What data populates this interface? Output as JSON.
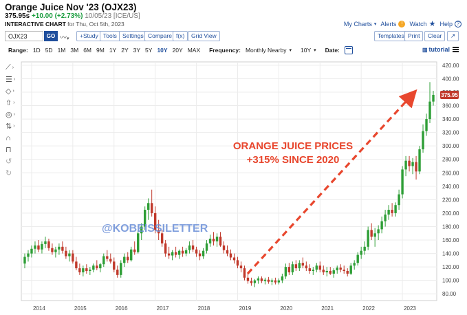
{
  "header": {
    "title": "Orange Juice Nov '23 (OJX23)",
    "last": "375.95s",
    "change": "+10.00 (+2.73%)",
    "meta": "10/05/23 [ICE/US]",
    "subtitle_bold": "INTERACTIVE CHART",
    "subtitle_rest": "for Thu, Oct 5th, 2023"
  },
  "top_links": {
    "my_charts": "My Charts",
    "alerts": "Alerts",
    "watch": "Watch",
    "help": "Help"
  },
  "toolbar": {
    "symbol_value": "OJX23",
    "go_label": "GO",
    "study_label": "+Study",
    "tools_label": "Tools",
    "settings_label": "Settings",
    "compare_label": "Compare",
    "fx_label": "f(x)",
    "grid_view_label": "Grid View",
    "templates_label": "Templates",
    "print_label": "Print",
    "clear_label": "Clear",
    "expand_label": "↗"
  },
  "range_bar": {
    "range_label": "Range:",
    "ranges": [
      "1D",
      "5D",
      "1M",
      "3M",
      "6M",
      "9M",
      "1Y",
      "2Y",
      "3Y",
      "5Y",
      "10Y",
      "20Y",
      "MAX"
    ],
    "active_range": "10Y",
    "frequency_label": "Frequency:",
    "frequency_value": "Monthly Nearby",
    "period_value": "10Y",
    "date_label": "Date:",
    "tutorial_label": "tutorial"
  },
  "side_tool_icons": [
    "line-tool-icon",
    "fib-tool-icon",
    "shape-tool-icon",
    "arrow-tool-icon",
    "pattern-tool-icon",
    "measure-tool-icon",
    "magnet-icon",
    "lock-icon",
    "undo-icon",
    "redo-icon"
  ],
  "annotation": {
    "line1": "ORANGE JUICE PRICES",
    "line2": "+315% SINCE 2020",
    "watermark": "@KOBEISSILETTER",
    "color": "#e8472e"
  },
  "colors": {
    "up": "#2e9e36",
    "down": "#c0392b",
    "accent": "#1f4e9c",
    "last_price_badge": "#c0392b"
  },
  "chart_data": {
    "type": "candlestick",
    "last_price_label": "375.95",
    "ylim": [
      70,
      425
    ],
    "y_ticks": [
      80,
      100,
      120,
      140,
      160,
      180,
      200,
      220,
      240,
      260,
      280,
      300,
      320,
      340,
      360,
      380,
      400,
      420
    ],
    "y_tick_labels": [
      "80.00",
      "100.00",
      "120.00",
      "140.00",
      "160.00",
      "180.00",
      "200.00",
      "220.00",
      "240.00",
      "260.00",
      "280.00",
      "300.00",
      "320.00",
      "340.00",
      "360.00",
      "380.00",
      "400.00",
      "420.00"
    ],
    "x_ticks": [
      "2014",
      "2015",
      "2016",
      "2017",
      "2018",
      "2019",
      "2020",
      "2021",
      "2022",
      "2023"
    ],
    "xlim": [
      "2013-10",
      "2023-11"
    ],
    "candles": [
      {
        "d": "2013-11",
        "o": 125,
        "h": 140,
        "l": 118,
        "c": 135
      },
      {
        "d": "2013-12",
        "o": 135,
        "h": 145,
        "l": 128,
        "c": 140
      },
      {
        "d": "2014-01",
        "o": 140,
        "h": 152,
        "l": 134,
        "c": 147
      },
      {
        "d": "2014-02",
        "o": 147,
        "h": 158,
        "l": 140,
        "c": 152
      },
      {
        "d": "2014-03",
        "o": 152,
        "h": 160,
        "l": 142,
        "c": 146
      },
      {
        "d": "2014-04",
        "o": 146,
        "h": 158,
        "l": 140,
        "c": 154
      },
      {
        "d": "2014-05",
        "o": 154,
        "h": 165,
        "l": 148,
        "c": 158
      },
      {
        "d": "2014-06",
        "o": 158,
        "h": 162,
        "l": 144,
        "c": 148
      },
      {
        "d": "2014-07",
        "o": 148,
        "h": 155,
        "l": 138,
        "c": 142
      },
      {
        "d": "2014-08",
        "o": 142,
        "h": 150,
        "l": 134,
        "c": 146
      },
      {
        "d": "2014-09",
        "o": 146,
        "h": 155,
        "l": 138,
        "c": 150
      },
      {
        "d": "2014-10",
        "o": 150,
        "h": 158,
        "l": 140,
        "c": 144
      },
      {
        "d": "2014-11",
        "o": 144,
        "h": 150,
        "l": 132,
        "c": 136
      },
      {
        "d": "2014-12",
        "o": 136,
        "h": 145,
        "l": 128,
        "c": 140
      },
      {
        "d": "2015-01",
        "o": 140,
        "h": 145,
        "l": 125,
        "c": 128
      },
      {
        "d": "2015-02",
        "o": 128,
        "h": 135,
        "l": 115,
        "c": 118
      },
      {
        "d": "2015-03",
        "o": 118,
        "h": 125,
        "l": 108,
        "c": 112
      },
      {
        "d": "2015-04",
        "o": 112,
        "h": 122,
        "l": 106,
        "c": 118
      },
      {
        "d": "2015-05",
        "o": 118,
        "h": 124,
        "l": 110,
        "c": 114
      },
      {
        "d": "2015-06",
        "o": 114,
        "h": 120,
        "l": 108,
        "c": 116
      },
      {
        "d": "2015-07",
        "o": 116,
        "h": 125,
        "l": 112,
        "c": 122
      },
      {
        "d": "2015-08",
        "o": 122,
        "h": 130,
        "l": 115,
        "c": 118
      },
      {
        "d": "2015-09",
        "o": 118,
        "h": 126,
        "l": 112,
        "c": 124
      },
      {
        "d": "2015-10",
        "o": 124,
        "h": 140,
        "l": 120,
        "c": 136
      },
      {
        "d": "2015-11",
        "o": 136,
        "h": 145,
        "l": 128,
        "c": 132
      },
      {
        "d": "2015-12",
        "o": 132,
        "h": 140,
        "l": 125,
        "c": 128
      },
      {
        "d": "2016-01",
        "o": 128,
        "h": 134,
        "l": 112,
        "c": 116
      },
      {
        "d": "2016-02",
        "o": 116,
        "h": 122,
        "l": 104,
        "c": 108
      },
      {
        "d": "2016-03",
        "o": 108,
        "h": 130,
        "l": 104,
        "c": 126
      },
      {
        "d": "2016-04",
        "o": 126,
        "h": 140,
        "l": 120,
        "c": 135
      },
      {
        "d": "2016-05",
        "o": 135,
        "h": 142,
        "l": 126,
        "c": 130
      },
      {
        "d": "2016-06",
        "o": 130,
        "h": 150,
        "l": 128,
        "c": 146
      },
      {
        "d": "2016-07",
        "o": 146,
        "h": 158,
        "l": 138,
        "c": 142
      },
      {
        "d": "2016-08",
        "o": 142,
        "h": 175,
        "l": 140,
        "c": 170
      },
      {
        "d": "2016-09",
        "o": 170,
        "h": 185,
        "l": 160,
        "c": 180
      },
      {
        "d": "2016-10",
        "o": 180,
        "h": 210,
        "l": 175,
        "c": 205
      },
      {
        "d": "2016-11",
        "o": 205,
        "h": 222,
        "l": 190,
        "c": 215
      },
      {
        "d": "2016-12",
        "o": 215,
        "h": 235,
        "l": 195,
        "c": 200
      },
      {
        "d": "2017-01",
        "o": 200,
        "h": 210,
        "l": 170,
        "c": 175
      },
      {
        "d": "2017-02",
        "o": 175,
        "h": 190,
        "l": 160,
        "c": 170
      },
      {
        "d": "2017-03",
        "o": 170,
        "h": 175,
        "l": 150,
        "c": 155
      },
      {
        "d": "2017-04",
        "o": 155,
        "h": 160,
        "l": 135,
        "c": 140
      },
      {
        "d": "2017-05",
        "o": 140,
        "h": 150,
        "l": 132,
        "c": 137
      },
      {
        "d": "2017-06",
        "o": 137,
        "h": 145,
        "l": 130,
        "c": 142
      },
      {
        "d": "2017-07",
        "o": 142,
        "h": 150,
        "l": 134,
        "c": 138
      },
      {
        "d": "2017-08",
        "o": 138,
        "h": 146,
        "l": 132,
        "c": 144
      },
      {
        "d": "2017-09",
        "o": 144,
        "h": 150,
        "l": 135,
        "c": 140
      },
      {
        "d": "2017-10",
        "o": 140,
        "h": 148,
        "l": 136,
        "c": 145
      },
      {
        "d": "2017-11",
        "o": 145,
        "h": 158,
        "l": 140,
        "c": 152
      },
      {
        "d": "2017-12",
        "o": 152,
        "h": 160,
        "l": 142,
        "c": 146
      },
      {
        "d": "2018-01",
        "o": 146,
        "h": 150,
        "l": 135,
        "c": 140
      },
      {
        "d": "2018-02",
        "o": 140,
        "h": 145,
        "l": 130,
        "c": 136
      },
      {
        "d": "2018-03",
        "o": 136,
        "h": 148,
        "l": 132,
        "c": 144
      },
      {
        "d": "2018-04",
        "o": 144,
        "h": 160,
        "l": 140,
        "c": 155
      },
      {
        "d": "2018-05",
        "o": 155,
        "h": 168,
        "l": 150,
        "c": 162
      },
      {
        "d": "2018-06",
        "o": 162,
        "h": 172,
        "l": 152,
        "c": 158
      },
      {
        "d": "2018-07",
        "o": 158,
        "h": 170,
        "l": 150,
        "c": 165
      },
      {
        "d": "2018-08",
        "o": 165,
        "h": 172,
        "l": 150,
        "c": 152
      },
      {
        "d": "2018-09",
        "o": 152,
        "h": 158,
        "l": 140,
        "c": 145
      },
      {
        "d": "2018-10",
        "o": 145,
        "h": 152,
        "l": 136,
        "c": 140
      },
      {
        "d": "2018-11",
        "o": 140,
        "h": 146,
        "l": 130,
        "c": 134
      },
      {
        "d": "2018-12",
        "o": 134,
        "h": 140,
        "l": 125,
        "c": 130
      },
      {
        "d": "2019-01",
        "o": 130,
        "h": 135,
        "l": 118,
        "c": 122
      },
      {
        "d": "2019-02",
        "o": 122,
        "h": 128,
        "l": 112,
        "c": 118
      },
      {
        "d": "2019-03",
        "o": 118,
        "h": 122,
        "l": 100,
        "c": 104
      },
      {
        "d": "2019-04",
        "o": 104,
        "h": 110,
        "l": 95,
        "c": 99
      },
      {
        "d": "2019-05",
        "o": 99,
        "h": 104,
        "l": 92,
        "c": 96
      },
      {
        "d": "2019-06",
        "o": 96,
        "h": 102,
        "l": 90,
        "c": 100
      },
      {
        "d": "2019-07",
        "o": 100,
        "h": 106,
        "l": 95,
        "c": 103
      },
      {
        "d": "2019-08",
        "o": 103,
        "h": 106,
        "l": 96,
        "c": 99
      },
      {
        "d": "2019-09",
        "o": 99,
        "h": 104,
        "l": 94,
        "c": 101
      },
      {
        "d": "2019-10",
        "o": 101,
        "h": 105,
        "l": 95,
        "c": 98
      },
      {
        "d": "2019-11",
        "o": 98,
        "h": 103,
        "l": 93,
        "c": 100
      },
      {
        "d": "2019-12",
        "o": 100,
        "h": 104,
        "l": 94,
        "c": 97
      },
      {
        "d": "2020-01",
        "o": 97,
        "h": 103,
        "l": 94,
        "c": 100
      },
      {
        "d": "2020-02",
        "o": 100,
        "h": 110,
        "l": 96,
        "c": 106
      },
      {
        "d": "2020-03",
        "o": 106,
        "h": 125,
        "l": 102,
        "c": 120
      },
      {
        "d": "2020-04",
        "o": 120,
        "h": 126,
        "l": 108,
        "c": 112
      },
      {
        "d": "2020-05",
        "o": 112,
        "h": 128,
        "l": 108,
        "c": 124
      },
      {
        "d": "2020-06",
        "o": 124,
        "h": 130,
        "l": 114,
        "c": 118
      },
      {
        "d": "2020-07",
        "o": 118,
        "h": 130,
        "l": 114,
        "c": 126
      },
      {
        "d": "2020-08",
        "o": 126,
        "h": 134,
        "l": 118,
        "c": 122
      },
      {
        "d": "2020-09",
        "o": 122,
        "h": 128,
        "l": 114,
        "c": 118
      },
      {
        "d": "2020-10",
        "o": 118,
        "h": 124,
        "l": 110,
        "c": 114
      },
      {
        "d": "2020-11",
        "o": 114,
        "h": 120,
        "l": 108,
        "c": 116
      },
      {
        "d": "2020-12",
        "o": 116,
        "h": 126,
        "l": 112,
        "c": 122
      },
      {
        "d": "2021-01",
        "o": 122,
        "h": 128,
        "l": 112,
        "c": 116
      },
      {
        "d": "2021-02",
        "o": 116,
        "h": 122,
        "l": 108,
        "c": 112
      },
      {
        "d": "2021-03",
        "o": 112,
        "h": 120,
        "l": 106,
        "c": 114
      },
      {
        "d": "2021-04",
        "o": 114,
        "h": 120,
        "l": 108,
        "c": 110
      },
      {
        "d": "2021-05",
        "o": 110,
        "h": 118,
        "l": 104,
        "c": 115
      },
      {
        "d": "2021-06",
        "o": 115,
        "h": 122,
        "l": 110,
        "c": 119
      },
      {
        "d": "2021-07",
        "o": 119,
        "h": 124,
        "l": 112,
        "c": 116
      },
      {
        "d": "2021-08",
        "o": 116,
        "h": 122,
        "l": 110,
        "c": 114
      },
      {
        "d": "2021-09",
        "o": 114,
        "h": 118,
        "l": 106,
        "c": 110
      },
      {
        "d": "2021-10",
        "o": 110,
        "h": 126,
        "l": 108,
        "c": 122
      },
      {
        "d": "2021-11",
        "o": 122,
        "h": 130,
        "l": 116,
        "c": 126
      },
      {
        "d": "2021-12",
        "o": 126,
        "h": 142,
        "l": 122,
        "c": 138
      },
      {
        "d": "2022-01",
        "o": 138,
        "h": 150,
        "l": 132,
        "c": 144
      },
      {
        "d": "2022-02",
        "o": 144,
        "h": 158,
        "l": 138,
        "c": 150
      },
      {
        "d": "2022-03",
        "o": 150,
        "h": 180,
        "l": 145,
        "c": 175
      },
      {
        "d": "2022-04",
        "o": 175,
        "h": 185,
        "l": 160,
        "c": 165
      },
      {
        "d": "2022-05",
        "o": 165,
        "h": 178,
        "l": 150,
        "c": 170
      },
      {
        "d": "2022-06",
        "o": 170,
        "h": 182,
        "l": 160,
        "c": 176
      },
      {
        "d": "2022-07",
        "o": 176,
        "h": 195,
        "l": 170,
        "c": 188
      },
      {
        "d": "2022-08",
        "o": 188,
        "h": 205,
        "l": 180,
        "c": 198
      },
      {
        "d": "2022-09",
        "o": 198,
        "h": 212,
        "l": 190,
        "c": 205
      },
      {
        "d": "2022-10",
        "o": 205,
        "h": 215,
        "l": 195,
        "c": 200
      },
      {
        "d": "2022-11",
        "o": 200,
        "h": 216,
        "l": 195,
        "c": 212
      },
      {
        "d": "2022-12",
        "o": 212,
        "h": 235,
        "l": 205,
        "c": 228
      },
      {
        "d": "2023-01",
        "o": 228,
        "h": 270,
        "l": 222,
        "c": 265
      },
      {
        "d": "2023-02",
        "o": 265,
        "h": 285,
        "l": 255,
        "c": 278
      },
      {
        "d": "2023-03",
        "o": 278,
        "h": 285,
        "l": 262,
        "c": 270
      },
      {
        "d": "2023-04",
        "o": 270,
        "h": 282,
        "l": 258,
        "c": 276
      },
      {
        "d": "2023-05",
        "o": 276,
        "h": 285,
        "l": 250,
        "c": 262
      },
      {
        "d": "2023-06",
        "o": 262,
        "h": 300,
        "l": 258,
        "c": 295
      },
      {
        "d": "2023-07",
        "o": 295,
        "h": 332,
        "l": 290,
        "c": 322
      },
      {
        "d": "2023-08",
        "o": 322,
        "h": 348,
        "l": 315,
        "c": 340
      },
      {
        "d": "2023-09",
        "o": 340,
        "h": 395,
        "l": 334,
        "c": 366
      },
      {
        "d": "2023-10",
        "o": 366,
        "h": 382,
        "l": 360,
        "c": 375.95
      }
    ]
  }
}
